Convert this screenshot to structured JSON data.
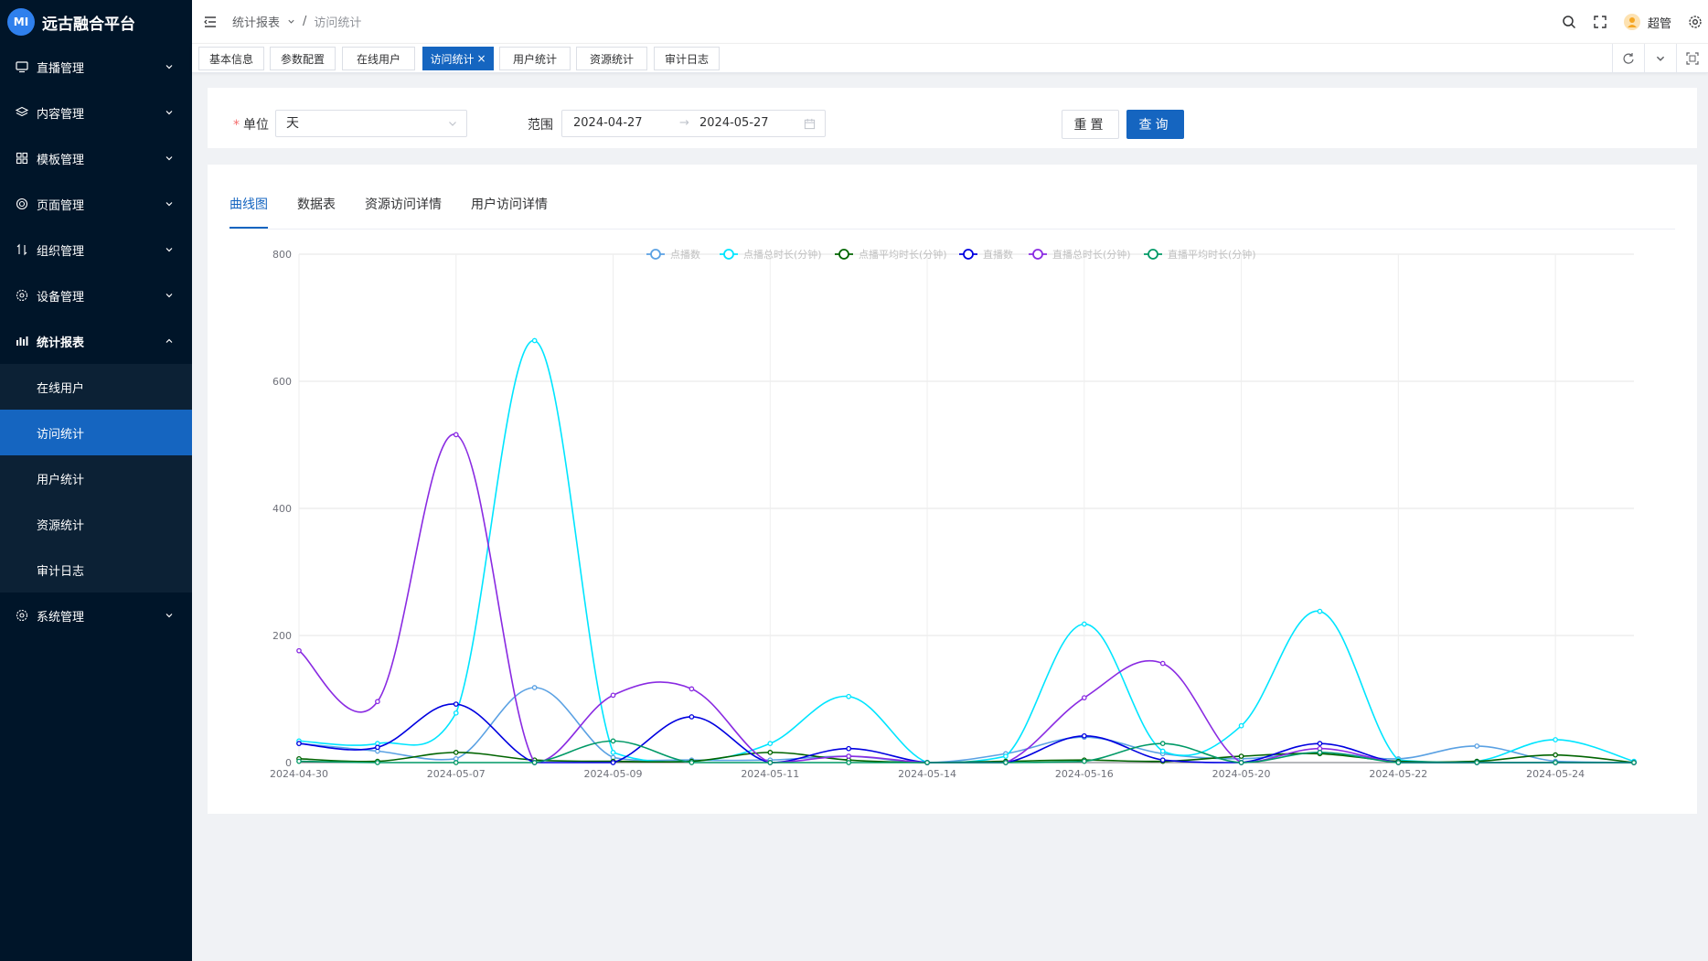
{
  "app": {
    "title": "远古融合平台",
    "logo_text": "MI"
  },
  "sidebar": {
    "items": [
      {
        "label": "直播管理",
        "icon": "monitor-icon"
      },
      {
        "label": "内容管理",
        "icon": "layers-icon"
      },
      {
        "label": "模板管理",
        "icon": "grid-icon"
      },
      {
        "label": "页面管理",
        "icon": "target-icon"
      },
      {
        "label": "组织管理",
        "icon": "swap-icon"
      },
      {
        "label": "设备管理",
        "icon": "gear-icon"
      },
      {
        "label": "统计报表",
        "icon": "bar-chart-icon",
        "expanded": true
      }
    ],
    "sub_items": [
      {
        "label": "在线用户"
      },
      {
        "label": "访问统计",
        "active": true
      },
      {
        "label": "用户统计"
      },
      {
        "label": "资源统计"
      },
      {
        "label": "审计日志"
      }
    ],
    "bottom_item": {
      "label": "系统管理",
      "icon": "gear-icon"
    }
  },
  "header": {
    "breadcrumb_parent": "统计报表",
    "breadcrumb_sep": "/",
    "breadcrumb_current": "访问统计",
    "username": "超管"
  },
  "tabs": [
    {
      "label": "基本信息"
    },
    {
      "label": "参数配置"
    },
    {
      "label": "在线用户"
    },
    {
      "label": "访问统计",
      "active": true,
      "close": "×"
    },
    {
      "label": "用户统计"
    },
    {
      "label": "资源统计"
    },
    {
      "label": "审计日志"
    }
  ],
  "filter": {
    "unit_label": "单位",
    "required_mark": "*",
    "unit_value": "天",
    "range_label": "范围",
    "range_start": "2024-04-27",
    "range_sep": "→",
    "range_end": "2024-05-27",
    "reset_label": "重置",
    "query_label": "查询"
  },
  "chart_tabs": [
    {
      "label": "曲线图",
      "active": true
    },
    {
      "label": "数据表"
    },
    {
      "label": "资源访问详情"
    },
    {
      "label": "用户访问详情"
    }
  ],
  "chart_data": {
    "type": "line",
    "smooth": true,
    "legend_position": "top",
    "grid": true,
    "ylim": [
      0,
      800
    ],
    "yticks": [
      0,
      200,
      400,
      600,
      800
    ],
    "x": [
      "2024-04-30",
      "2024-05-06",
      "2024-05-07",
      "2024-05-08",
      "2024-05-09",
      "2024-05-10",
      "2024-05-11",
      "2024-05-13",
      "2024-05-14",
      "2024-05-15",
      "2024-05-16",
      "2024-05-17",
      "2024-05-20",
      "2024-05-21",
      "2024-05-22",
      "2024-05-23",
      "2024-05-24",
      "2024-05-26"
    ],
    "xtick_labels": [
      "2024-04-30",
      "2024-05-07",
      "2024-05-09",
      "2024-05-11",
      "2024-05-14",
      "2024-05-16",
      "2024-05-20",
      "2024-05-22",
      "2024-05-24"
    ],
    "series": [
      {
        "name": "点播数",
        "color": "#5aa1e3",
        "values": [
          30,
          18,
          6,
          118,
          8,
          4,
          4,
          10,
          0,
          14,
          40,
          14,
          6,
          16,
          6,
          26,
          2,
          0
        ]
      },
      {
        "name": "点播总时长(分钟)",
        "color": "#00e5ff",
        "values": [
          34,
          30,
          78,
          664,
          16,
          2,
          30,
          104,
          0,
          10,
          218,
          18,
          58,
          238,
          4,
          2,
          36,
          2
        ]
      },
      {
        "name": "点播平均时长(分钟)",
        "color": "#006400",
        "values": [
          6,
          2,
          16,
          4,
          2,
          2,
          16,
          4,
          0,
          2,
          4,
          2,
          10,
          14,
          2,
          2,
          12,
          0
        ]
      },
      {
        "name": "直播数",
        "color": "#0000e0",
        "values": [
          30,
          24,
          92,
          0,
          0,
          72,
          0,
          22,
          0,
          0,
          42,
          4,
          0,
          30,
          0,
          0,
          0,
          0
        ]
      },
      {
        "name": "直播总时长(分钟)",
        "color": "#8a2be2",
        "values": [
          176,
          96,
          516,
          0,
          106,
          116,
          0,
          10,
          0,
          0,
          102,
          156,
          0,
          22,
          0,
          0,
          0,
          0
        ]
      },
      {
        "name": "直播平均时长(分钟)",
        "color": "#009966",
        "values": [
          2,
          0,
          0,
          0,
          34,
          0,
          0,
          0,
          0,
          0,
          2,
          30,
          0,
          16,
          0,
          0,
          0,
          0
        ]
      }
    ]
  }
}
